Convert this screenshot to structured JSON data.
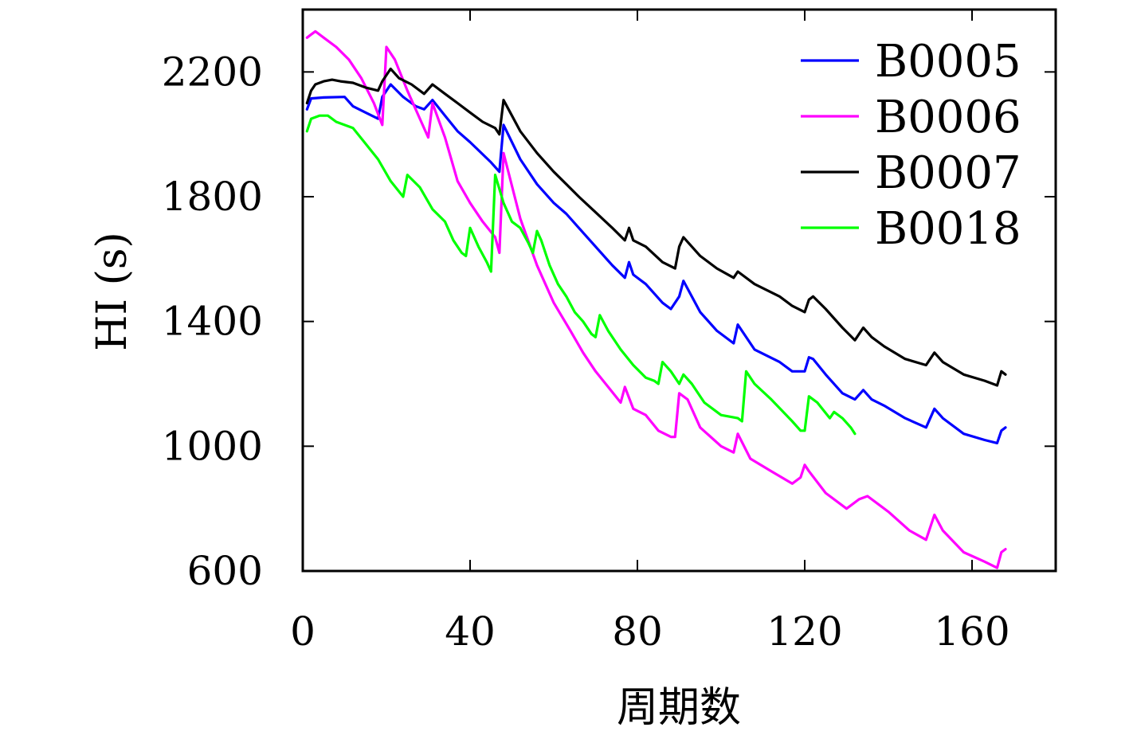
{
  "chart_data": {
    "type": "line",
    "title": "",
    "xlabel": "周期数",
    "ylabel": "HI (s)",
    "xlim": [
      0,
      180
    ],
    "ylim": [
      600,
      2400
    ],
    "xticks": [
      0,
      40,
      80,
      120,
      160
    ],
    "yticks": [
      600,
      1000,
      1400,
      1800,
      2200
    ],
    "grid": false,
    "legend_position": "top-right",
    "series": [
      {
        "name": "B0005",
        "color": "#0000ff",
        "x": [
          1,
          2,
          5,
          10,
          12,
          15,
          18,
          19,
          21,
          24,
          27,
          29,
          31,
          34,
          37,
          40,
          45,
          47,
          48,
          52,
          56,
          60,
          63,
          66,
          70,
          74,
          77,
          78,
          79,
          82,
          86,
          88,
          90,
          91,
          95,
          99,
          103,
          104,
          108,
          114,
          117,
          120,
          121,
          122,
          125,
          129,
          132,
          134,
          136,
          139,
          144,
          149,
          151,
          153,
          158,
          163,
          166,
          167,
          168
        ],
        "y": [
          2080,
          2115,
          2118,
          2120,
          2090,
          2070,
          2050,
          2120,
          2160,
          2120,
          2090,
          2080,
          2110,
          2060,
          2010,
          1975,
          1910,
          1880,
          2030,
          1920,
          1840,
          1780,
          1745,
          1700,
          1640,
          1580,
          1540,
          1590,
          1550,
          1520,
          1460,
          1440,
          1480,
          1530,
          1430,
          1370,
          1330,
          1390,
          1310,
          1270,
          1240,
          1240,
          1285,
          1280,
          1230,
          1170,
          1150,
          1180,
          1150,
          1130,
          1090,
          1060,
          1120,
          1090,
          1040,
          1020,
          1010,
          1050,
          1060
        ]
      },
      {
        "name": "B0006",
        "color": "#ff00ff",
        "x": [
          1,
          2,
          3,
          5,
          8,
          11,
          14,
          17,
          19,
          20,
          22,
          25,
          28,
          30,
          31,
          34,
          37,
          40,
          43,
          46,
          47,
          48,
          52,
          56,
          60,
          64,
          67,
          70,
          73,
          76,
          77,
          79,
          82,
          85,
          88,
          89,
          90,
          92,
          95,
          100,
          103,
          104,
          107,
          112,
          117,
          119,
          120,
          121,
          125,
          130,
          133,
          135,
          140,
          145,
          149,
          151,
          153,
          158,
          163,
          166,
          167,
          168
        ],
        "y": [
          2310,
          2320,
          2330,
          2310,
          2280,
          2240,
          2180,
          2100,
          2030,
          2280,
          2240,
          2140,
          2050,
          1990,
          2100,
          1990,
          1850,
          1780,
          1720,
          1670,
          1620,
          1940,
          1730,
          1580,
          1460,
          1370,
          1300,
          1240,
          1190,
          1140,
          1190,
          1120,
          1100,
          1050,
          1030,
          1030,
          1170,
          1150,
          1060,
          1000,
          980,
          1040,
          960,
          920,
          880,
          900,
          940,
          920,
          850,
          800,
          830,
          840,
          790,
          730,
          700,
          780,
          730,
          660,
          630,
          610,
          660,
          670
        ]
      },
      {
        "name": "B0007",
        "color": "#000000",
        "x": [
          1,
          2,
          3,
          5,
          7,
          9,
          12,
          15,
          18,
          19,
          21,
          23,
          26,
          29,
          31,
          34,
          37,
          40,
          43,
          46,
          47,
          48,
          52,
          56,
          60,
          63,
          66,
          70,
          74,
          77,
          78,
          79,
          82,
          86,
          89,
          90,
          91,
          95,
          99,
          103,
          104,
          108,
          114,
          117,
          120,
          121,
          122,
          125,
          129,
          132,
          134,
          136,
          139,
          144,
          149,
          151,
          153,
          158,
          163,
          166,
          167,
          168
        ],
        "y": [
          2100,
          2140,
          2160,
          2170,
          2175,
          2170,
          2165,
          2150,
          2140,
          2170,
          2210,
          2180,
          2160,
          2130,
          2160,
          2130,
          2100,
          2070,
          2040,
          2020,
          2000,
          2110,
          2010,
          1940,
          1880,
          1840,
          1800,
          1750,
          1700,
          1660,
          1700,
          1660,
          1640,
          1590,
          1570,
          1640,
          1670,
          1610,
          1570,
          1540,
          1560,
          1520,
          1480,
          1450,
          1430,
          1470,
          1480,
          1440,
          1380,
          1340,
          1380,
          1350,
          1320,
          1280,
          1260,
          1300,
          1270,
          1230,
          1210,
          1195,
          1240,
          1230
        ]
      },
      {
        "name": "B0018",
        "color": "#00ff00",
        "x": [
          1,
          2,
          4,
          6,
          8,
          10,
          12,
          15,
          18,
          21,
          24,
          25,
          28,
          31,
          34,
          36,
          38,
          39,
          40,
          42,
          44,
          45,
          46,
          48,
          50,
          52,
          54,
          55,
          56,
          57,
          59,
          61,
          63,
          65,
          67,
          69,
          70,
          71,
          73,
          76,
          79,
          82,
          84,
          85,
          86,
          88,
          90,
          91,
          93,
          96,
          100,
          104,
          105,
          106,
          108,
          112,
          117,
          119,
          120,
          121,
          123,
          126,
          127,
          129,
          131,
          132
        ],
        "y": [
          2010,
          2050,
          2060,
          2060,
          2040,
          2030,
          2020,
          1970,
          1920,
          1850,
          1800,
          1870,
          1830,
          1760,
          1720,
          1660,
          1620,
          1610,
          1700,
          1640,
          1590,
          1560,
          1870,
          1780,
          1720,
          1700,
          1650,
          1620,
          1690,
          1660,
          1580,
          1520,
          1480,
          1430,
          1400,
          1360,
          1350,
          1420,
          1370,
          1310,
          1260,
          1220,
          1210,
          1200,
          1270,
          1240,
          1200,
          1230,
          1200,
          1140,
          1100,
          1090,
          1080,
          1240,
          1200,
          1150,
          1080,
          1050,
          1050,
          1160,
          1140,
          1090,
          1110,
          1090,
          1060,
          1040
        ]
      }
    ]
  }
}
